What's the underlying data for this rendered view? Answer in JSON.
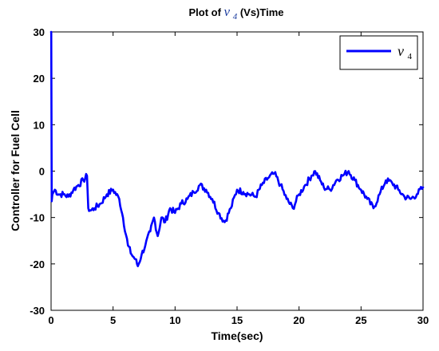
{
  "chart_data": {
    "type": "line",
    "title": {
      "prefix": "Plot of ",
      "symbol": "v",
      "subscript": "4",
      "suffix": " (Vs)Time"
    },
    "xlabel": "Time(sec)",
    "ylabel": "Controller for Fuel Cell",
    "xlim": [
      0,
      30
    ],
    "ylim": [
      -30,
      30
    ],
    "xticks": [
      0,
      5,
      10,
      15,
      20,
      25,
      30
    ],
    "yticks": [
      -30,
      -20,
      -10,
      0,
      10,
      20,
      30
    ],
    "grid": false,
    "legend": {
      "placement": "top-right",
      "entries": [
        {
          "symbol": "v",
          "subscript": "4"
        }
      ]
    },
    "series": [
      {
        "color": "#0000ff",
        "x": [
          0,
          0.01,
          0.05,
          0.1,
          0.3,
          0.6,
          1.0,
          1.4,
          1.8,
          2.2,
          2.6,
          2.9,
          3.0,
          3.2,
          3.5,
          4.0,
          4.5,
          5.0,
          5.5,
          5.8,
          6.2,
          6.5,
          6.8,
          7.0,
          7.3,
          7.6,
          8.0,
          8.3,
          8.6,
          8.9,
          9.2,
          9.6,
          10.0,
          10.5,
          11.0,
          11.5,
          12.0,
          12.5,
          13.0,
          13.5,
          14.0,
          14.5,
          15.0,
          15.5,
          16.0,
          16.5,
          17.0,
          17.5,
          18.0,
          18.5,
          19.0,
          19.5,
          20.0,
          20.5,
          21.0,
          21.3,
          21.7,
          22.0,
          22.5,
          23.0,
          23.5,
          24.0,
          24.5,
          25.0,
          25.5,
          26.0,
          26.5,
          27.0,
          27.5,
          28.0,
          28.5,
          29.0,
          29.5,
          30.0
        ],
        "y": [
          30,
          30,
          -6.5,
          -5,
          -4,
          -5,
          -5,
          -5.5,
          -4,
          -3,
          -2,
          -1,
          -8,
          -8.5,
          -8,
          -7,
          -5,
          -4,
          -6,
          -10,
          -16,
          -18,
          -19,
          -20.5,
          -18,
          -16,
          -13,
          -10,
          -14,
          -10,
          -11,
          -8,
          -9,
          -7,
          -6,
          -4.5,
          -3,
          -4,
          -6,
          -9,
          -11,
          -8,
          -4,
          -4.5,
          -5,
          -5.5,
          -3,
          -1.5,
          -0.5,
          -3,
          -6,
          -8,
          -5,
          -3,
          -1,
          0,
          -2,
          -3.5,
          -4,
          -2,
          -1,
          0,
          -2,
          -4,
          -6,
          -8,
          -5,
          -2,
          -2.5,
          -4,
          -5.5,
          -6,
          -5,
          -3.5
        ]
      }
    ]
  }
}
